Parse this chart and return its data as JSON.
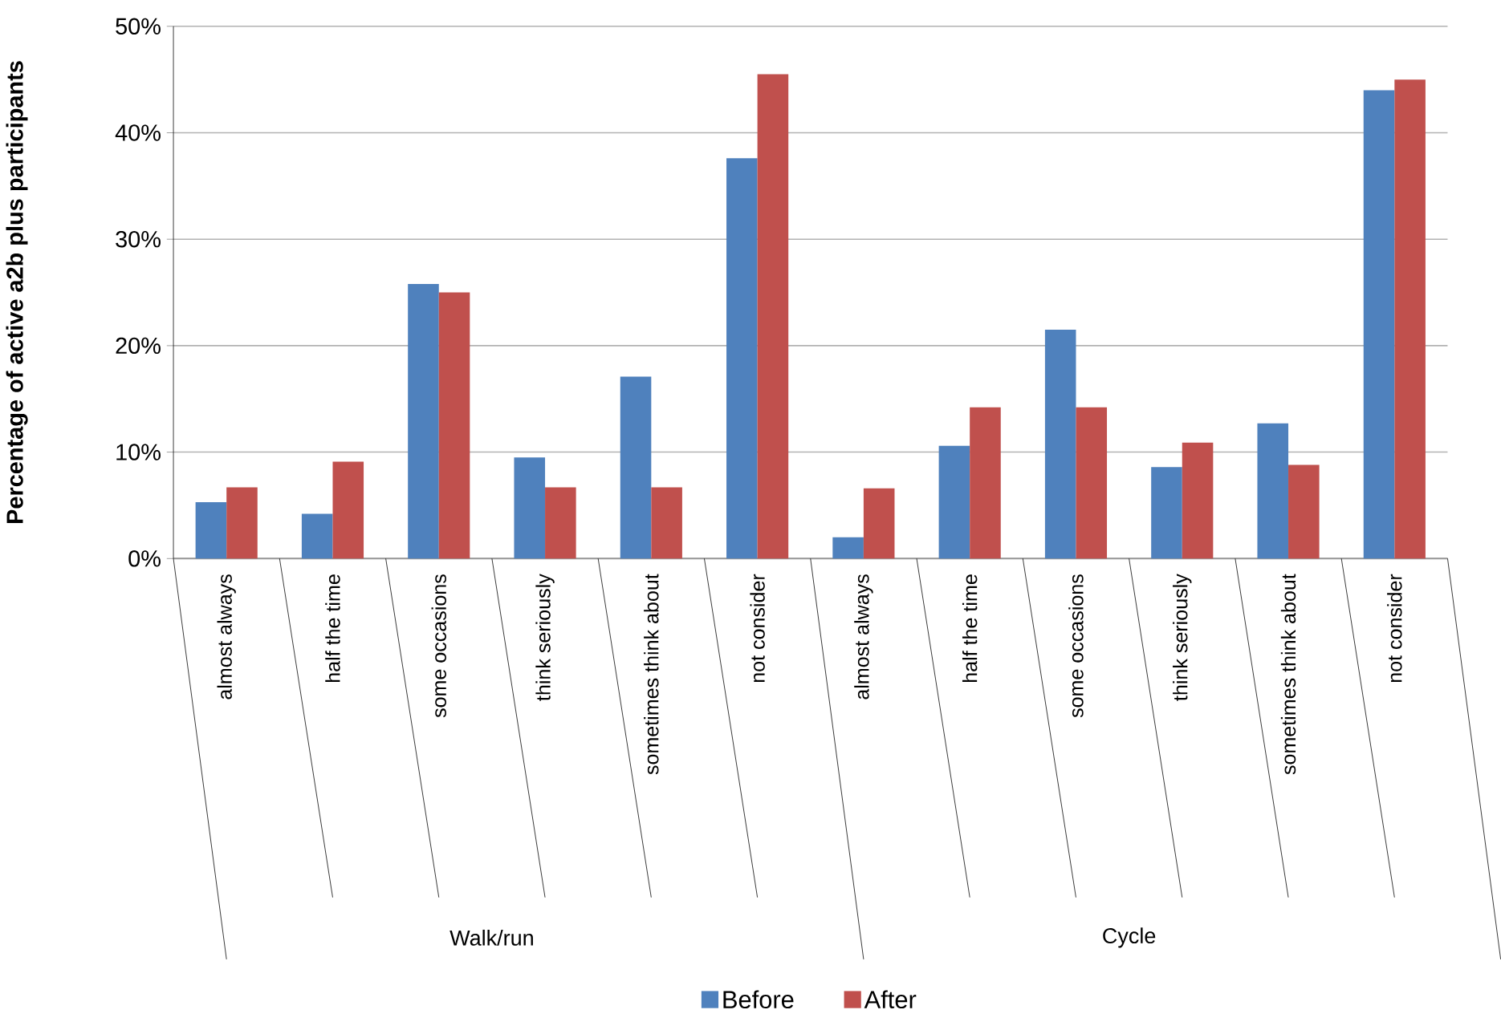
{
  "chart_data": {
    "type": "bar",
    "ylabel": "Percentage of active a2b plus participants",
    "categories": [
      "almost always",
      "half the time",
      "some occasions",
      "think seriously",
      "sometimes think about",
      "not consider",
      "almost always",
      "half the time",
      "some occasions",
      "think seriously",
      "sometimes think about",
      "not consider"
    ],
    "series": [
      {
        "name": "Before",
        "color": "#4f81bd",
        "values": [
          5.3,
          4.2,
          25.8,
          9.5,
          17.1,
          37.6,
          2.0,
          10.6,
          21.5,
          8.6,
          12.7,
          44.0
        ]
      },
      {
        "name": "After",
        "color": "#c0504d",
        "values": [
          6.7,
          9.1,
          25.0,
          6.7,
          6.7,
          45.5,
          6.6,
          14.2,
          14.2,
          10.9,
          8.8,
          45.0
        ]
      }
    ],
    "annotations": [
      "Walk/run",
      "Cycle"
    ],
    "ylim": [
      0,
      50
    ],
    "yticks": [
      {
        "value": 0,
        "label": "0%"
      },
      {
        "value": 10,
        "label": "10%"
      },
      {
        "value": 20,
        "label": "20%"
      },
      {
        "value": 30,
        "label": "30%"
      },
      {
        "value": 40,
        "label": "40%"
      },
      {
        "value": 50,
        "label": "50%"
      }
    ],
    "grid": "y",
    "legend": "bottom"
  }
}
